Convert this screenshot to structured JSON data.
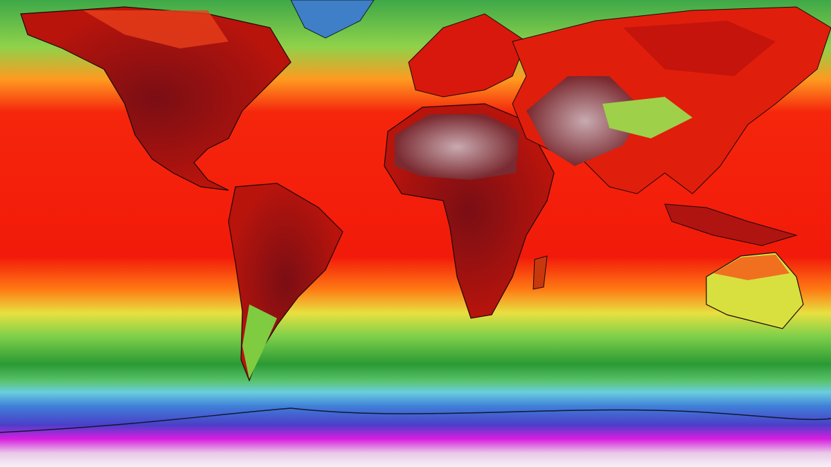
{
  "map": {
    "palette": {
      "polar_white": "#f2eef2",
      "magenta": "#d81ee0",
      "violet": "#5a3fd0",
      "blue": "#3f6fd8",
      "cyan": "#5fc8d8",
      "green": "#2fa83a",
      "light_green": "#9fdc4a",
      "yellow": "#f2e040",
      "orange": "#ff8a1a",
      "red": "#f21a0a",
      "dark_red": "#a8100c",
      "maroon": "#6a0e14",
      "desert_grey": "#b89aa0"
    }
  }
}
